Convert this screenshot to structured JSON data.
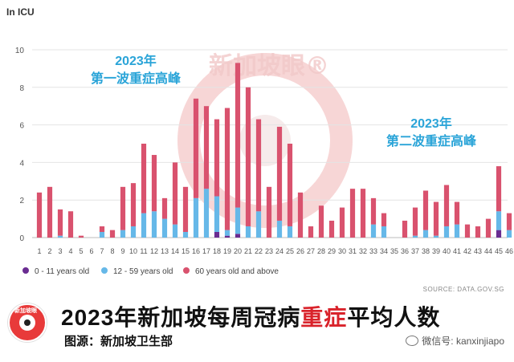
{
  "chart_data": {
    "type": "bar",
    "stacked": true,
    "ylabel": "In ICU",
    "ylim": [
      0,
      10
    ],
    "yticks": [
      0,
      2,
      4,
      6,
      8,
      10
    ],
    "grid": true,
    "legend_position": "bottom-left",
    "categories": [
      "1",
      "2",
      "3",
      "4",
      "5",
      "6",
      "7",
      "8",
      "9",
      "10",
      "11",
      "12",
      "13",
      "14",
      "15",
      "16",
      "17",
      "18",
      "19",
      "20",
      "21",
      "22",
      "23",
      "24",
      "25",
      "26",
      "27",
      "28",
      "29",
      "30",
      "31",
      "32",
      "33",
      "34",
      "35",
      "36",
      "37",
      "38",
      "39",
      "40",
      "41",
      "42",
      "43",
      "44",
      "45",
      "46"
    ],
    "series": [
      {
        "name": "0 - 11 years old",
        "color": "#6a2c91",
        "values": [
          0,
          0,
          0,
          0,
          0,
          0,
          0,
          0,
          0,
          0,
          0,
          0,
          0,
          0,
          0,
          0,
          0,
          0.3,
          0.1,
          0.2,
          0,
          0,
          0,
          0,
          0,
          0,
          0,
          0,
          0,
          0,
          0,
          0,
          0,
          0,
          0,
          0,
          0,
          0,
          0,
          0,
          0,
          0,
          0,
          0,
          0.4,
          0
        ]
      },
      {
        "name": "12 - 59 years old",
        "color": "#66b8e8",
        "values": [
          0,
          0,
          0.1,
          0,
          0,
          0,
          0.3,
          0,
          0.4,
          0.6,
          1.3,
          1.4,
          1.0,
          0.7,
          0.3,
          2.1,
          2.6,
          1.9,
          0.3,
          1.4,
          0.6,
          1.4,
          0,
          0.9,
          0.6,
          0,
          0,
          0,
          0,
          0,
          0,
          0,
          0.7,
          0.6,
          0,
          0,
          0.1,
          0.4,
          0.1,
          0.6,
          0.7,
          0,
          0,
          0,
          1.0,
          0.4
        ]
      },
      {
        "name": "60 years old and above",
        "color": "#d9526e",
        "values": [
          2.4,
          2.7,
          1.4,
          1.4,
          0.1,
          0,
          0.3,
          0.4,
          2.3,
          2.3,
          3.7,
          3.0,
          1.1,
          3.3,
          2.4,
          5.3,
          4.4,
          4.1,
          6.5,
          7.7,
          7.4,
          4.9,
          2.7,
          5.0,
          4.4,
          2.4,
          0.6,
          1.7,
          0.9,
          1.6,
          2.6,
          2.6,
          1.4,
          0.7,
          0,
          0.9,
          1.5,
          2.1,
          1.8,
          2.2,
          1.2,
          0.7,
          0.6,
          1.0,
          2.4,
          0.9
        ]
      }
    ],
    "annotations": [
      {
        "text": "2023年\n第一波重症高峰",
        "color": "#2aa4d8"
      },
      {
        "text": "2023年\n第二波重症高峰",
        "color": "#2aa4d8"
      }
    ],
    "source": "SOURCE: DATA.GOV.SG"
  },
  "watermark": "新加坡眼®",
  "headline": {
    "pre": "2023年新加坡每周冠病",
    "highlight": "重症",
    "post": "平均人数"
  },
  "subline": "图源：新加坡卫生部",
  "wechat": "微信号: kanxinjiapo",
  "logo_text": "新加坡眼",
  "colors": {
    "accent": "#d9232b",
    "annotation": "#2aa4d8"
  }
}
